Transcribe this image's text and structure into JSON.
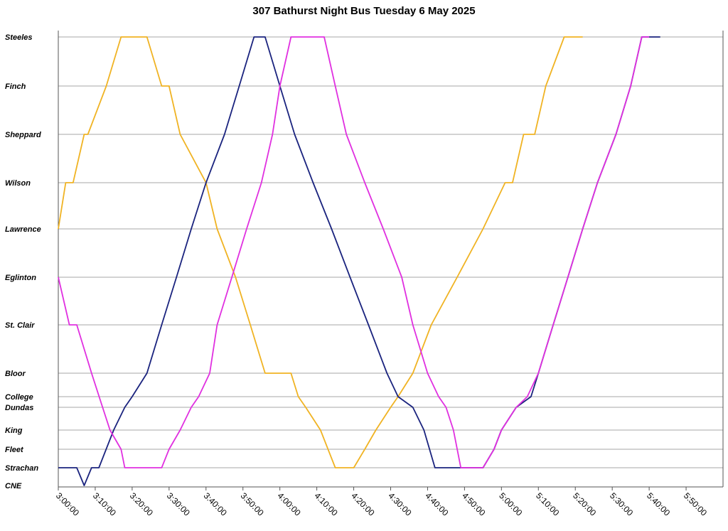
{
  "chart_data": {
    "type": "line",
    "title": "307 Bathurst Night Bus Tuesday 6 May 2025",
    "xlabel": "",
    "ylabel": "",
    "x_unit": "time",
    "xlim": [
      "3:00:00",
      "6:00:00"
    ],
    "x_ticks": [
      "3:00:00",
      "3:10:00",
      "3:20:00",
      "3:30:00",
      "3:40:00",
      "3:50:00",
      "4:00:00",
      "4:10:00",
      "4:20:00",
      "4:30:00",
      "4:40:00",
      "4:50:00",
      "5:00:00",
      "5:10:00",
      "5:20:00",
      "5:30:00",
      "5:40:00",
      "5:50:00"
    ],
    "stops": [
      {
        "name": "Steeles",
        "grid": true
      },
      {
        "name": "Finch",
        "grid": true
      },
      {
        "name": "Sheppard",
        "grid": true
      },
      {
        "name": "Wilson",
        "grid": true
      },
      {
        "name": "Lawrence",
        "grid": true
      },
      {
        "name": "Eglinton",
        "grid": true
      },
      {
        "name": "St. Clair",
        "grid": true
      },
      {
        "name": "Bloor",
        "grid": true
      },
      {
        "name": "College",
        "grid": true
      },
      {
        "name": "Dundas",
        "grid": true
      },
      {
        "name": "King",
        "grid": true
      },
      {
        "name": "Fleet",
        "grid": true
      },
      {
        "name": "Strachan",
        "grid": true
      },
      {
        "name": "CNE",
        "grid": false
      }
    ],
    "grid": true,
    "legend": "none",
    "series": [
      {
        "color": "#F0B323",
        "points": [
          [
            "3:00:00",
            "Lawrence"
          ],
          [
            "3:02:00",
            "Wilson"
          ],
          [
            "3:04:00",
            "Wilson"
          ],
          [
            "3:07:00",
            "Sheppard"
          ],
          [
            "3:08:00",
            "Sheppard"
          ],
          [
            "3:13:00",
            "Finch"
          ],
          [
            "3:17:00",
            "Steeles"
          ],
          [
            "3:21:00",
            "Steeles"
          ],
          [
            "3:24:00",
            "Steeles"
          ],
          [
            "3:28:00",
            "Finch"
          ],
          [
            "3:30:00",
            "Finch"
          ],
          [
            "3:33:00",
            "Sheppard"
          ],
          [
            "3:40:00",
            "Wilson"
          ],
          [
            "3:43:00",
            "Lawrence"
          ],
          [
            "3:48:00",
            "Eglinton"
          ],
          [
            "3:52:00",
            "St. Clair"
          ],
          [
            "3:56:00",
            "Bloor"
          ],
          [
            "4:03:00",
            "Bloor"
          ],
          [
            "4:05:00",
            "College"
          ],
          [
            "4:07:00",
            "Dundas"
          ],
          [
            "4:11:00",
            "King"
          ],
          [
            "4:15:00",
            "Strachan"
          ],
          [
            "4:18:00",
            "Strachan"
          ],
          [
            "4:20:00",
            "Strachan"
          ],
          [
            "4:23:00",
            "Fleet"
          ],
          [
            "4:26:00",
            "King"
          ],
          [
            "4:30:00",
            "Dundas"
          ],
          [
            "4:32:00",
            "College"
          ],
          [
            "4:36:00",
            "Bloor"
          ],
          [
            "4:41:00",
            "St. Clair"
          ],
          [
            "4:48:00",
            "Eglinton"
          ],
          [
            "4:55:00",
            "Lawrence"
          ],
          [
            "5:01:00",
            "Wilson"
          ],
          [
            "5:03:00",
            "Wilson"
          ],
          [
            "5:06:00",
            "Sheppard"
          ],
          [
            "5:09:00",
            "Sheppard"
          ],
          [
            "5:12:00",
            "Finch"
          ],
          [
            "5:17:00",
            "Steeles"
          ],
          [
            "5:18:00",
            "Steeles"
          ],
          [
            "5:22:00",
            "Steeles"
          ]
        ]
      },
      {
        "color": "#1A237E",
        "points": [
          [
            "3:00:00",
            "Strachan"
          ],
          [
            "3:03:00",
            "Strachan"
          ],
          [
            "3:05:00",
            "Strachan"
          ],
          [
            "3:07:00",
            "CNE"
          ],
          [
            "3:09:00",
            "Strachan"
          ],
          [
            "3:11:00",
            "Strachan"
          ],
          [
            "3:15:00",
            "King"
          ],
          [
            "3:18:00",
            "Dundas"
          ],
          [
            "3:20:00",
            "College"
          ],
          [
            "3:24:00",
            "Bloor"
          ],
          [
            "3:28:00",
            "St. Clair"
          ],
          [
            "3:32:00",
            "Eglinton"
          ],
          [
            "3:36:00",
            "Lawrence"
          ],
          [
            "3:40:00",
            "Wilson"
          ],
          [
            "3:45:00",
            "Sheppard"
          ],
          [
            "3:49:00",
            "Finch"
          ],
          [
            "3:53:00",
            "Steeles"
          ],
          [
            "3:56:00",
            "Steeles"
          ],
          [
            "4:00:00",
            "Finch"
          ],
          [
            "4:04:00",
            "Sheppard"
          ],
          [
            "4:09:00",
            "Wilson"
          ],
          [
            "4:14:00",
            "Lawrence"
          ],
          [
            "4:19:00",
            "Eglinton"
          ],
          [
            "4:24:00",
            "St. Clair"
          ],
          [
            "4:29:00",
            "Bloor"
          ],
          [
            "4:32:00",
            "College"
          ],
          [
            "4:36:00",
            "Dundas"
          ],
          [
            "4:39:00",
            "King"
          ],
          [
            "4:42:00",
            "Strachan"
          ],
          [
            "4:44:00",
            "Strachan"
          ],
          [
            "4:55:00",
            "Strachan"
          ],
          [
            "4:58:00",
            "Fleet"
          ],
          [
            "5:00:00",
            "King"
          ],
          [
            "5:04:00",
            "Dundas"
          ],
          [
            "5:08:00",
            "College"
          ],
          [
            "5:10:00",
            "Bloor"
          ],
          [
            "5:14:00",
            "St. Clair"
          ],
          [
            "5:18:00",
            "Eglinton"
          ],
          [
            "5:22:00",
            "Lawrence"
          ],
          [
            "5:26:00",
            "Wilson"
          ],
          [
            "5:31:00",
            "Sheppard"
          ],
          [
            "5:35:00",
            "Finch"
          ],
          [
            "5:38:00",
            "Steeles"
          ],
          [
            "5:40:00",
            "Steeles"
          ],
          [
            "5:43:00",
            "Steeles"
          ]
        ]
      },
      {
        "color": "#E030E0",
        "points": [
          [
            "3:00:00",
            "Eglinton"
          ],
          [
            "3:03:00",
            "St. Clair"
          ],
          [
            "3:05:00",
            "St. Clair"
          ],
          [
            "3:09:00",
            "Bloor"
          ],
          [
            "3:12:00",
            "Dundas"
          ],
          [
            "3:14:00",
            "King"
          ],
          [
            "3:17:00",
            "Fleet"
          ],
          [
            "3:18:00",
            "Strachan"
          ],
          [
            "3:21:00",
            "Strachan"
          ],
          [
            "3:28:00",
            "Strachan"
          ],
          [
            "3:30:00",
            "Fleet"
          ],
          [
            "3:33:00",
            "King"
          ],
          [
            "3:36:00",
            "Dundas"
          ],
          [
            "3:38:00",
            "College"
          ],
          [
            "3:41:00",
            "Bloor"
          ],
          [
            "3:43:00",
            "St. Clair"
          ],
          [
            "3:47:00",
            "Eglinton"
          ],
          [
            "3:51:00",
            "Lawrence"
          ],
          [
            "3:55:00",
            "Wilson"
          ],
          [
            "3:58:00",
            "Sheppard"
          ],
          [
            "4:00:00",
            "Finch"
          ],
          [
            "4:03:00",
            "Steeles"
          ],
          [
            "4:05:00",
            "Steeles"
          ],
          [
            "4:12:00",
            "Steeles"
          ],
          [
            "4:15:00",
            "Finch"
          ],
          [
            "4:18:00",
            "Sheppard"
          ],
          [
            "4:23:00",
            "Wilson"
          ],
          [
            "4:28:00",
            "Lawrence"
          ],
          [
            "4:33:00",
            "Eglinton"
          ],
          [
            "4:36:00",
            "St. Clair"
          ],
          [
            "4:40:00",
            "Bloor"
          ],
          [
            "4:43:00",
            "College"
          ],
          [
            "4:45:00",
            "Dundas"
          ],
          [
            "4:47:00",
            "King"
          ],
          [
            "4:49:00",
            "Strachan"
          ],
          [
            "4:55:00",
            "Strachan"
          ],
          [
            "4:58:00",
            "Fleet"
          ],
          [
            "5:00:00",
            "King"
          ],
          [
            "5:04:00",
            "Dundas"
          ],
          [
            "5:07:00",
            "College"
          ],
          [
            "5:10:00",
            "Bloor"
          ],
          [
            "5:14:00",
            "St. Clair"
          ],
          [
            "5:18:00",
            "Eglinton"
          ],
          [
            "5:22:00",
            "Lawrence"
          ],
          [
            "5:26:00",
            "Wilson"
          ],
          [
            "5:31:00",
            "Sheppard"
          ],
          [
            "5:35:00",
            "Finch"
          ],
          [
            "5:38:00",
            "Steeles"
          ],
          [
            "5:40:00",
            "Steeles"
          ]
        ]
      }
    ]
  }
}
